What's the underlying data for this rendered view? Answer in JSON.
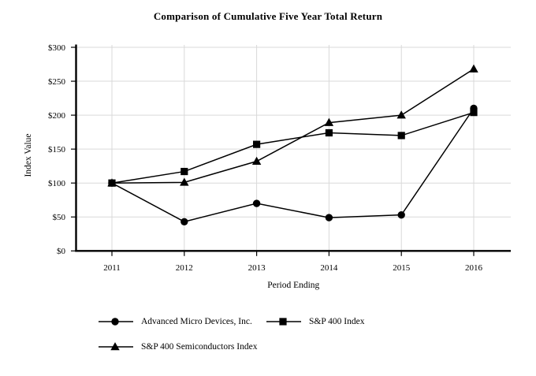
{
  "chart_data": {
    "type": "line",
    "title": "Comparison of Cumulative Five Year Total Return",
    "xlabel": "Period Ending",
    "ylabel": "Index Value",
    "categories": [
      "2011",
      "2012",
      "2013",
      "2014",
      "2015",
      "2016"
    ],
    "ylim": [
      0,
      300
    ],
    "ytick_interval": 50,
    "ytick_labels": [
      "$0",
      "$50",
      "$100",
      "$150",
      "$200",
      "$250",
      "$300"
    ],
    "grid": true,
    "legend_position": "bottom",
    "series": [
      {
        "name": "Advanced Micro Devices, Inc.",
        "marker": "circle",
        "color": "#000000",
        "values": [
          100,
          43,
          70,
          49,
          53,
          210
        ]
      },
      {
        "name": "S&P 400 Index",
        "marker": "square",
        "color": "#000000",
        "values": [
          100,
          117,
          157,
          174,
          170,
          204
        ]
      },
      {
        "name": "S&P 400 Semiconductors Index",
        "marker": "triangle",
        "color": "#000000",
        "values": [
          100,
          101,
          132,
          189,
          200,
          268
        ]
      }
    ],
    "colors": {
      "line": "#000000",
      "grid": "#d9d9d9",
      "axis": "#000000",
      "background": "#ffffff",
      "text": "#000000"
    }
  }
}
